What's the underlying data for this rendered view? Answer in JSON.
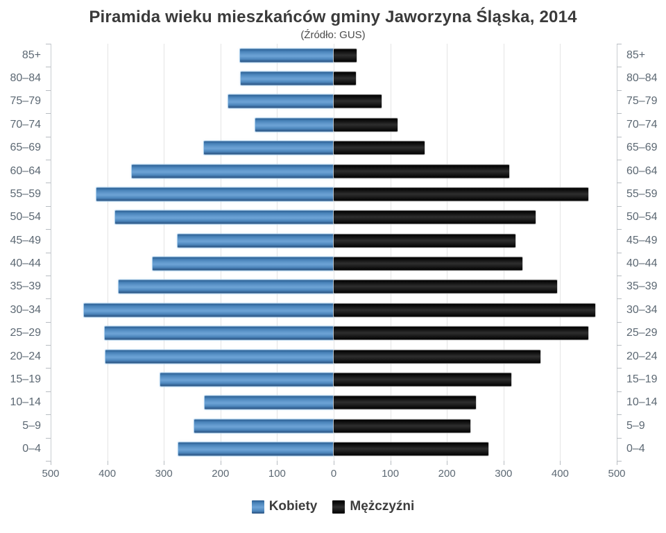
{
  "title": "Piramida wieku mieszkańców gminy Jaworzyna Śląska, 2014",
  "subtitle": "(Źródło: GUS)",
  "legend": {
    "women": "Kobiety",
    "men": "Mężczyźni"
  },
  "colors": {
    "women_bar": "#4d87bf",
    "men_bar": "#141414",
    "axis_text": "#5c6873",
    "grid": "#e4e4e4",
    "title_text": "#3a3a3a"
  },
  "axis": {
    "x_tick_labels": [
      "500",
      "400",
      "300",
      "200",
      "100",
      "0",
      "100",
      "200",
      "300",
      "400",
      "500"
    ],
    "x_max_per_side": 500
  },
  "chart_data": {
    "type": "bar",
    "variant": "population-pyramid",
    "title": "Piramida wieku mieszkańców gminy Jaworzyna Śląska, 2014",
    "subtitle": "(Źródło: GUS)",
    "x_max": 500,
    "xlim": [
      -500,
      500
    ],
    "grid": true,
    "legend_position": "bottom",
    "categories": [
      "85+",
      "80–84",
      "75–79",
      "70–74",
      "65–69",
      "60–64",
      "55–59",
      "50–54",
      "45–49",
      "40–44",
      "35–39",
      "30–34",
      "25–29",
      "20–24",
      "15–19",
      "10–14",
      "5–9",
      "0–4"
    ],
    "series": [
      {
        "name": "Kobiety",
        "side": "left",
        "values": [
          166,
          164,
          186,
          138,
          229,
          357,
          419,
          386,
          276,
          320,
          380,
          441,
          404,
          403,
          306,
          228,
          246,
          275
        ]
      },
      {
        "name": "Mężczyźni",
        "side": "right",
        "values": [
          40,
          39,
          84,
          113,
          161,
          310,
          450,
          357,
          321,
          333,
          395,
          462,
          450,
          365,
          314,
          251,
          241,
          273
        ]
      }
    ]
  }
}
